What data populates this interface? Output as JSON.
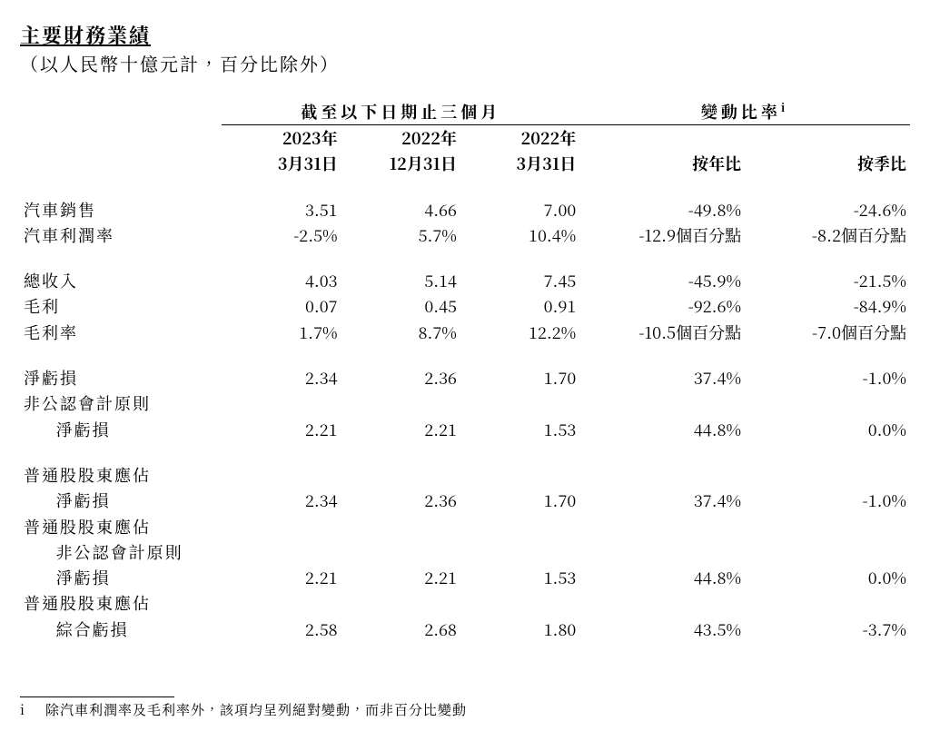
{
  "title": "主要財務業績",
  "subtitle": "（以人民幣十億元計，百分比除外）",
  "header": {
    "group_period": "截至以下日期止三個月",
    "group_change": "變動比率",
    "group_change_sup": "i",
    "cols": {
      "c1_year": "2023年",
      "c1_date": "3月31日",
      "c2_year": "2022年",
      "c2_date": "12月31日",
      "c3_year": "2022年",
      "c3_date": "3月31日",
      "yoy": "按年比",
      "qoq": "按季比"
    }
  },
  "rows": {
    "r0": {
      "label": "汽車銷售",
      "a": "3.51",
      "b": "4.66",
      "c": "7.00",
      "yoy": "-49.8%",
      "qoq": "-24.6%"
    },
    "r1": {
      "label": "汽車利潤率",
      "a": "-2.5%",
      "b": "5.7%",
      "c": "10.4%",
      "yoy": "-12.9個百分點",
      "qoq": "-8.2個百分點"
    },
    "r2": {
      "label": "總收入",
      "a": "4.03",
      "b": "5.14",
      "c": "7.45",
      "yoy": "-45.9%",
      "qoq": "-21.5%"
    },
    "r3": {
      "label": "毛利",
      "a": "0.07",
      "b": "0.45",
      "c": "0.91",
      "yoy": "-92.6%",
      "qoq": "-84.9%"
    },
    "r4": {
      "label": "毛利率",
      "a": "1.7%",
      "b": "8.7%",
      "c": "12.2%",
      "yoy": "-10.5個百分點",
      "qoq": "-7.0個百分點"
    },
    "r5": {
      "label": "淨虧損",
      "a": "2.34",
      "b": "2.36",
      "c": "1.70",
      "yoy": "37.4%",
      "qoq": "-1.0%"
    },
    "r6a": {
      "label": "非公認會計原則"
    },
    "r6b": {
      "label": "淨虧損",
      "a": "2.21",
      "b": "2.21",
      "c": "1.53",
      "yoy": "44.8%",
      "qoq": "0.0%"
    },
    "r7a": {
      "label": "普通股股東應佔"
    },
    "r7b": {
      "label": "淨虧損",
      "a": "2.34",
      "b": "2.36",
      "c": "1.70",
      "yoy": "37.4%",
      "qoq": "-1.0%"
    },
    "r8a": {
      "label": "普通股股東應佔"
    },
    "r8b": {
      "label": "非公認會計原則"
    },
    "r8c": {
      "label": "淨虧損",
      "a": "2.21",
      "b": "2.21",
      "c": "1.53",
      "yoy": "44.8%",
      "qoq": "0.0%"
    },
    "r9a": {
      "label": "普通股股東應佔"
    },
    "r9b": {
      "label": "綜合虧損",
      "a": "2.58",
      "b": "2.68",
      "c": "1.80",
      "yoy": "43.5%",
      "qoq": "-3.7%"
    }
  },
  "footnote": {
    "mark": "i",
    "text": "除汽車利潤率及毛利率外，該項均呈列絕對變動，而非百分比變動"
  }
}
